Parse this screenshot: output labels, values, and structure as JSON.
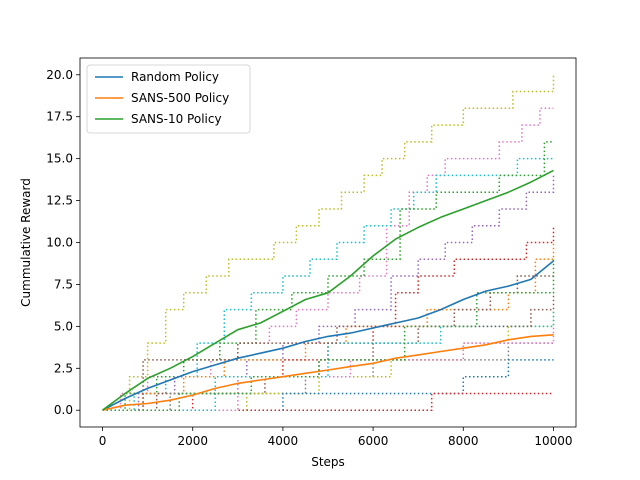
{
  "chart_data": {
    "type": "line",
    "title": "",
    "xlabel": "Steps",
    "ylabel": "Cummulative Reward",
    "xlim": [
      -500,
      10500
    ],
    "ylim": [
      -1,
      21
    ],
    "xticks": [
      0,
      2000,
      4000,
      6000,
      8000,
      10000
    ],
    "yticks": [
      0,
      2.5,
      5,
      7.5,
      10,
      12.5,
      15,
      17.5,
      20
    ],
    "xtick_labels": [
      "0",
      "2000",
      "4000",
      "6000",
      "8000",
      "10000"
    ],
    "ytick_labels": [
      "0.0",
      "2.5",
      "5.0",
      "7.5",
      "10.0",
      "12.5",
      "15.0",
      "17.5",
      "20.0"
    ],
    "grid": false,
    "legend_position": "top-left",
    "legend": [
      "Random Policy",
      "SANS-500 Policy",
      "SANS-10 Policy"
    ],
    "series": [
      {
        "name": "Random Policy",
        "color": "#1f77b4",
        "style": "solid",
        "x": [
          0,
          500,
          1000,
          1500,
          2000,
          2500,
          3000,
          3500,
          4000,
          4500,
          5000,
          5500,
          6000,
          6500,
          7000,
          7500,
          8000,
          8500,
          9000,
          9500,
          10000
        ],
        "y": [
          0,
          0.7,
          1.3,
          1.8,
          2.3,
          2.7,
          3.1,
          3.4,
          3.7,
          4.1,
          4.4,
          4.6,
          4.9,
          5.2,
          5.5,
          6.0,
          6.6,
          7.1,
          7.4,
          7.8,
          8.9
        ]
      },
      {
        "name": "SANS-500 Policy",
        "color": "#ff7f0e",
        "style": "solid",
        "x": [
          0,
          500,
          1000,
          1500,
          2000,
          2500,
          3000,
          3500,
          4000,
          4500,
          5000,
          5500,
          6000,
          6500,
          7000,
          7500,
          8000,
          8500,
          9000,
          9500,
          10000
        ],
        "y": [
          0,
          0.3,
          0.4,
          0.6,
          0.9,
          1.3,
          1.6,
          1.8,
          2.0,
          2.2,
          2.4,
          2.6,
          2.8,
          3.1,
          3.3,
          3.5,
          3.7,
          3.9,
          4.2,
          4.4,
          4.5
        ]
      },
      {
        "name": "SANS-10 Policy",
        "color": "#2ca02c",
        "style": "solid",
        "x": [
          0,
          500,
          1000,
          1500,
          2000,
          2500,
          3000,
          3500,
          4000,
          4500,
          5000,
          5500,
          6000,
          6500,
          7000,
          7500,
          8000,
          8500,
          9000,
          9500,
          10000
        ],
        "y": [
          0,
          1.0,
          1.9,
          2.5,
          3.2,
          4.0,
          4.8,
          5.2,
          5.9,
          6.6,
          7.0,
          8.0,
          9.2,
          10.2,
          10.9,
          11.5,
          12.0,
          12.5,
          13.0,
          13.6,
          14.3
        ]
      }
    ],
    "individual_runs": [
      {
        "color": "#bcbd22",
        "x": [
          0,
          600,
          1000,
          1400,
          1800,
          2300,
          2800,
          3300,
          3800,
          4300,
          4800,
          5300,
          5800,
          6200,
          6700,
          7300,
          8000,
          8600,
          9100,
          9500,
          10000
        ],
        "y": [
          0,
          2,
          4,
          6,
          7,
          8,
          9,
          9,
          10,
          11,
          12,
          13,
          14,
          15,
          16,
          17,
          18,
          18,
          19,
          19,
          20
        ]
      },
      {
        "color": "#e377c2",
        "x": [
          0,
          400,
          1000,
          1600,
          2400,
          3000,
          3700,
          4300,
          5000,
          5700,
          6300,
          6800,
          7200,
          7600,
          8200,
          8800,
          9300,
          9700,
          10000
        ],
        "y": [
          0,
          1,
          2,
          2,
          3,
          4,
          5,
          6,
          7,
          8,
          11,
          13,
          14,
          15,
          15,
          16,
          17,
          18,
          18
        ]
      },
      {
        "color": "#17becf",
        "x": [
          0,
          700,
          1400,
          2100,
          2700,
          3300,
          4000,
          4600,
          5200,
          5800,
          6400,
          6900,
          7400,
          8000,
          8600,
          9200,
          10000
        ],
        "y": [
          0,
          1,
          2,
          4,
          6,
          7,
          8,
          9,
          10,
          11,
          12,
          13,
          14,
          14,
          14,
          15,
          15
        ]
      },
      {
        "color": "#2ca02c",
        "x": [
          0,
          500,
          1200,
          1800,
          2600,
          3400,
          4200,
          5000,
          5800,
          6600,
          7400,
          8200,
          8800,
          9400,
          9800,
          10000
        ],
        "y": [
          0,
          1,
          2,
          3,
          4,
          6,
          7,
          8,
          9,
          12,
          13,
          13,
          14,
          14,
          16,
          16
        ]
      },
      {
        "color": "#9467bd",
        "x": [
          0,
          800,
          1600,
          2400,
          3200,
          4000,
          4800,
          5600,
          6400,
          7000,
          7600,
          8200,
          8800,
          9400,
          10000
        ],
        "y": [
          0,
          1,
          2,
          2,
          3,
          4,
          5,
          6,
          8,
          9,
          10,
          11,
          12,
          13,
          14
        ]
      },
      {
        "color": "#ff7f0e",
        "x": [
          0,
          900,
          1800,
          2700,
          3600,
          4500,
          5400,
          6300,
          7200,
          8100,
          9000,
          9600,
          10000
        ],
        "y": [
          0,
          1,
          2,
          3,
          3,
          4,
          5,
          5,
          6,
          6,
          7,
          9,
          10
        ]
      },
      {
        "color": "#d62728",
        "x": [
          0,
          1000,
          2000,
          3000,
          4000,
          5000,
          6000,
          6500,
          7000,
          7800,
          8600,
          9400,
          10000
        ],
        "y": [
          0,
          0,
          1,
          2,
          3,
          4,
          5,
          7,
          8,
          9,
          9,
          10,
          11
        ]
      },
      {
        "color": "#8c564b",
        "x": [
          0,
          1200,
          2400,
          3600,
          4800,
          6000,
          7000,
          7800,
          8600,
          9200,
          10000
        ],
        "y": [
          0,
          1,
          1,
          2,
          3,
          4,
          5,
          6,
          7,
          8,
          8
        ]
      },
      {
        "color": "#7f7f7f",
        "x": [
          0,
          1500,
          3000,
          4500,
          6000,
          7500,
          9000,
          10000
        ],
        "y": [
          0,
          1,
          1,
          2,
          3,
          3,
          4,
          4
        ]
      },
      {
        "color": "#bcbd22",
        "x": [
          0,
          1600,
          3200,
          4800,
          6400,
          8000,
          9000,
          10000
        ],
        "y": [
          0,
          0,
          1,
          2,
          3,
          4,
          5,
          6
        ]
      },
      {
        "color": "#1f77b4",
        "x": [
          0,
          2000,
          4000,
          6000,
          8000,
          9000,
          10000
        ],
        "y": [
          0,
          0,
          1,
          1,
          2,
          3,
          3
        ]
      },
      {
        "color": "#d62728",
        "x": [
          0,
          7300,
          10000
        ],
        "y": [
          0,
          1,
          1
        ]
      },
      {
        "color": "#e377c2",
        "x": [
          0,
          3000,
          5500,
          8000,
          10000
        ],
        "y": [
          0,
          2,
          3,
          4,
          5
        ]
      },
      {
        "color": "#17becf",
        "x": [
          0,
          2500,
          5000,
          7500,
          10000
        ],
        "y": [
          0,
          2,
          4,
          5,
          6
        ]
      },
      {
        "color": "#8c564b",
        "x": [
          0,
          900,
          3000,
          5200,
          7000,
          9500,
          10000
        ],
        "y": [
          0,
          3,
          4,
          5,
          5,
          6,
          7
        ]
      },
      {
        "color": "#2ca02c",
        "x": [
          0,
          1700,
          3300,
          4800,
          6700,
          8300,
          10000
        ],
        "y": [
          0,
          1,
          2,
          3,
          5,
          7,
          9
        ]
      }
    ]
  }
}
